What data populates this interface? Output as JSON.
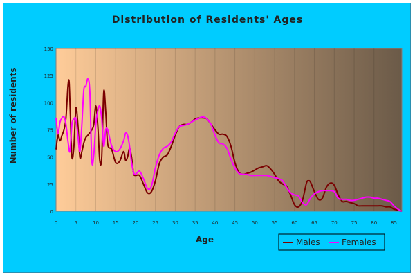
{
  "chart_data": {
    "type": "line",
    "title": "Distribution of Residents' Ages",
    "xlabel": "Age",
    "ylabel": "Number of residents",
    "xlim": [
      0,
      87
    ],
    "ylim": [
      0,
      150
    ],
    "x_ticks": [
      0,
      5,
      10,
      15,
      20,
      25,
      30,
      35,
      40,
      45,
      50,
      55,
      60,
      65,
      70,
      75,
      80,
      85
    ],
    "y_ticks": [
      0,
      25,
      50,
      75,
      100,
      125,
      150
    ],
    "grid": "vertical",
    "legend_position": "bottom-right",
    "background_gradient": [
      "#ffcc99",
      "#6b5a48"
    ],
    "series": [
      {
        "name": "Males",
        "color": "#7a0000",
        "points": [
          [
            0,
            57
          ],
          [
            0.5,
            70
          ],
          [
            1,
            65
          ],
          [
            1.5,
            70
          ],
          [
            2,
            75
          ],
          [
            2.5,
            86
          ],
          [
            3,
            115
          ],
          [
            3.3,
            119
          ],
          [
            3.6,
            90
          ],
          [
            4,
            50
          ],
          [
            4.5,
            60
          ],
          [
            5,
            95
          ],
          [
            5.5,
            80
          ],
          [
            6,
            50
          ],
          [
            6.5,
            55
          ],
          [
            7,
            63
          ],
          [
            7.5,
            68
          ],
          [
            8,
            70
          ],
          [
            9,
            75
          ],
          [
            9.5,
            80
          ],
          [
            10,
            97
          ],
          [
            10.5,
            80
          ],
          [
            11,
            47
          ],
          [
            11.5,
            50
          ],
          [
            12,
            110
          ],
          [
            12.5,
            92
          ],
          [
            13,
            62
          ],
          [
            14,
            57
          ],
          [
            15,
            45
          ],
          [
            16,
            46
          ],
          [
            17,
            55
          ],
          [
            17.5,
            47
          ],
          [
            18,
            50
          ],
          [
            18.5,
            58
          ],
          [
            19,
            50
          ],
          [
            19.5,
            35
          ],
          [
            20,
            33
          ],
          [
            21,
            33
          ],
          [
            22,
            25
          ],
          [
            23,
            17
          ],
          [
            24,
            18
          ],
          [
            25,
            28
          ],
          [
            26,
            44
          ],
          [
            27,
            50
          ],
          [
            28,
            52
          ],
          [
            29,
            60
          ],
          [
            30,
            70
          ],
          [
            31,
            78
          ],
          [
            32,
            80
          ],
          [
            33,
            80
          ],
          [
            34,
            82
          ],
          [
            35,
            85
          ],
          [
            36,
            86
          ],
          [
            37,
            86
          ],
          [
            38,
            85
          ],
          [
            39,
            80
          ],
          [
            40,
            75
          ],
          [
            41,
            71
          ],
          [
            42,
            71
          ],
          [
            43,
            69
          ],
          [
            44,
            60
          ],
          [
            45,
            45
          ],
          [
            46,
            36
          ],
          [
            47,
            34
          ],
          [
            48,
            35
          ],
          [
            49,
            36
          ],
          [
            50,
            38
          ],
          [
            51,
            40
          ],
          [
            52,
            41
          ],
          [
            53,
            42
          ],
          [
            54,
            39
          ],
          [
            55,
            34
          ],
          [
            56,
            28
          ],
          [
            57,
            25
          ],
          [
            58,
            23
          ],
          [
            59,
            15
          ],
          [
            60,
            6
          ],
          [
            61,
            4
          ],
          [
            62,
            10
          ],
          [
            63,
            26
          ],
          [
            63.5,
            28
          ],
          [
            64,
            27
          ],
          [
            65,
            18
          ],
          [
            66,
            11
          ],
          [
            67,
            12
          ],
          [
            68,
            22
          ],
          [
            69,
            26
          ],
          [
            70,
            24
          ],
          [
            71,
            15
          ],
          [
            72,
            9
          ],
          [
            73,
            9
          ],
          [
            74,
            8
          ],
          [
            75,
            7
          ],
          [
            76,
            5
          ],
          [
            77,
            5
          ],
          [
            78,
            5
          ],
          [
            79,
            5
          ],
          [
            80,
            5
          ],
          [
            81,
            5
          ],
          [
            82,
            5
          ],
          [
            83,
            4
          ],
          [
            84,
            4
          ],
          [
            85,
            2
          ],
          [
            86,
            1
          ],
          [
            87,
            0
          ]
        ]
      },
      {
        "name": "Females",
        "color": "#ff00ff",
        "points": [
          [
            0,
            86
          ],
          [
            0.5,
            72
          ],
          [
            1,
            82
          ],
          [
            1.5,
            86
          ],
          [
            2,
            87
          ],
          [
            2.5,
            80
          ],
          [
            3,
            65
          ],
          [
            3.5,
            55
          ],
          [
            4,
            80
          ],
          [
            4.5,
            85
          ],
          [
            5,
            85
          ],
          [
            5.5,
            70
          ],
          [
            6,
            55
          ],
          [
            6.5,
            80
          ],
          [
            7,
            112
          ],
          [
            7.5,
            115
          ],
          [
            8,
            122
          ],
          [
            8.5,
            110
          ],
          [
            9,
            47
          ],
          [
            9.5,
            52
          ],
          [
            10,
            80
          ],
          [
            10.5,
            92
          ],
          [
            11,
            97
          ],
          [
            11.5,
            85
          ],
          [
            12,
            60
          ],
          [
            12.5,
            75
          ],
          [
            13,
            75
          ],
          [
            14,
            60
          ],
          [
            15,
            55
          ],
          [
            16,
            57
          ],
          [
            17,
            65
          ],
          [
            17.5,
            72
          ],
          [
            18,
            70
          ],
          [
            18.5,
            60
          ],
          [
            19,
            45
          ],
          [
            19.5,
            36
          ],
          [
            20,
            34
          ],
          [
            21,
            37
          ],
          [
            22,
            30
          ],
          [
            23,
            21
          ],
          [
            24,
            23
          ],
          [
            25,
            40
          ],
          [
            26,
            52
          ],
          [
            27,
            58
          ],
          [
            28,
            60
          ],
          [
            29,
            64
          ],
          [
            30,
            72
          ],
          [
            31,
            78
          ],
          [
            32,
            79
          ],
          [
            33,
            80
          ],
          [
            34,
            82
          ],
          [
            35,
            84
          ],
          [
            36,
            86
          ],
          [
            37,
            87
          ],
          [
            38,
            85
          ],
          [
            39,
            80
          ],
          [
            40,
            70
          ],
          [
            41,
            63
          ],
          [
            42,
            62
          ],
          [
            43,
            58
          ],
          [
            44,
            48
          ],
          [
            45,
            40
          ],
          [
            46,
            35
          ],
          [
            47,
            34
          ],
          [
            48,
            34
          ],
          [
            49,
            33
          ],
          [
            50,
            33
          ],
          [
            51,
            33
          ],
          [
            52,
            33
          ],
          [
            53,
            33
          ],
          [
            54,
            32
          ],
          [
            55,
            31
          ],
          [
            56,
            30
          ],
          [
            57,
            28
          ],
          [
            58,
            22
          ],
          [
            59,
            17
          ],
          [
            60,
            15
          ],
          [
            61,
            14
          ],
          [
            62,
            8
          ],
          [
            63,
            6
          ],
          [
            64,
            12
          ],
          [
            65,
            16
          ],
          [
            66,
            18
          ],
          [
            67,
            19
          ],
          [
            68,
            19
          ],
          [
            69,
            19
          ],
          [
            70,
            18
          ],
          [
            71,
            12
          ],
          [
            72,
            11
          ],
          [
            73,
            11
          ],
          [
            74,
            10
          ],
          [
            75,
            10
          ],
          [
            76,
            11
          ],
          [
            77,
            12
          ],
          [
            78,
            13
          ],
          [
            79,
            13
          ],
          [
            80,
            12
          ],
          [
            81,
            12
          ],
          [
            82,
            11
          ],
          [
            83,
            10
          ],
          [
            84,
            9
          ],
          [
            85,
            5
          ],
          [
            86,
            2
          ],
          [
            87,
            0
          ]
        ]
      }
    ]
  }
}
